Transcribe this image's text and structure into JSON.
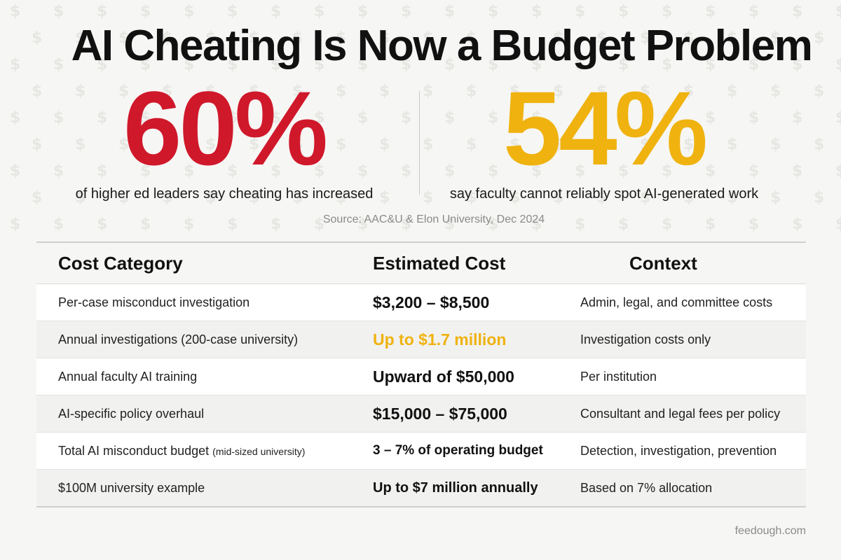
{
  "title": "AI Cheating Is Now a Budget Problem",
  "stats": [
    {
      "value": "60%",
      "caption": "of higher ed leaders say cheating has increased",
      "color": "#d0182b"
    },
    {
      "value": "54%",
      "caption": "say faculty cannot reliably spot AI-generated work",
      "color": "#efb20f"
    }
  ],
  "source": "Source: AAC&U & Elon University, Dec 2024",
  "table": {
    "headers": [
      "Cost Category",
      "Estimated Cost",
      "Context"
    ],
    "rows": [
      {
        "category": "Per-case misconduct investigation",
        "cost": "$3,200 – $8,500",
        "context": "Admin, legal, and committee costs"
      },
      {
        "category": "Annual investigations (200-case university)",
        "cost": "Up to $1.7 million",
        "context": "Investigation costs only"
      },
      {
        "category": "Annual faculty AI training",
        "cost": "Upward of $50,000",
        "context": "Per institution"
      },
      {
        "category": "AI-specific policy overhaul",
        "cost": "$15,000 – $75,000",
        "context": "Consultant and legal fees per policy"
      },
      {
        "category": "Total AI misconduct budget",
        "category_note": "(mid-sized university)",
        "cost": "3 – 7% of operating budget",
        "context": "Detection, investigation, prevention"
      },
      {
        "category": "$100M university example",
        "cost": "Up to $7 million annually",
        "context": "Based on 7% allocation"
      }
    ]
  },
  "footer": "feedough.com",
  "colors": {
    "red": "#d0182b",
    "gold": "#efb20f",
    "background": "#f6f6f4"
  },
  "background_icon": "dollar-sign-pattern"
}
